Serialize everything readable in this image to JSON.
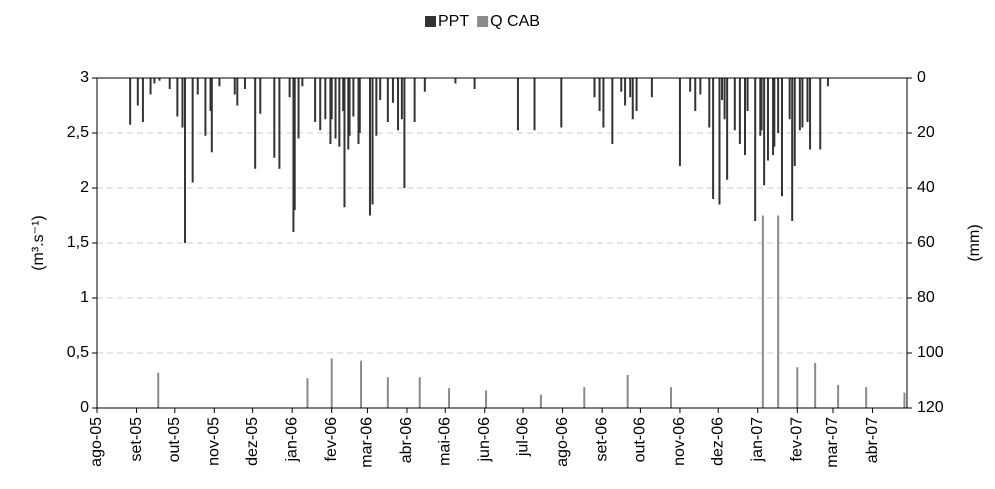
{
  "chart_data": {
    "type": "bar",
    "ylabel": "(m³.s⁻¹)",
    "y2label": "(mm)",
    "xlim": [
      0,
      635
    ],
    "xticks": [
      {
        "value": 0,
        "label": "ago-05"
      },
      {
        "value": 31,
        "label": "set-05"
      },
      {
        "value": 61,
        "label": "out-05"
      },
      {
        "value": 92,
        "label": "nov-05"
      },
      {
        "value": 122,
        "label": "dez-05"
      },
      {
        "value": 153,
        "label": "jan-06"
      },
      {
        "value": 184,
        "label": "fev-06"
      },
      {
        "value": 212,
        "label": "mar-06"
      },
      {
        "value": 243,
        "label": "abr-06"
      },
      {
        "value": 273,
        "label": "mai-06"
      },
      {
        "value": 304,
        "label": "jun-06"
      },
      {
        "value": 334,
        "label": "jul-06"
      },
      {
        "value": 365,
        "label": "ago-06"
      },
      {
        "value": 396,
        "label": "set-06"
      },
      {
        "value": 426,
        "label": "out-06"
      },
      {
        "value": 457,
        "label": "nov-06"
      },
      {
        "value": 487,
        "label": "dez-06"
      },
      {
        "value": 518,
        "label": "jan-07"
      },
      {
        "value": 549,
        "label": "fev-07"
      },
      {
        "value": 577,
        "label": "mar-07"
      },
      {
        "value": 608,
        "label": "abr-07"
      }
    ],
    "ylim": [
      0,
      3
    ],
    "yticks": [
      0,
      {
        "value": 0.5,
        "label": "0,5"
      },
      1,
      {
        "value": 1.5,
        "label": "1,5"
      },
      2,
      {
        "value": 2.5,
        "label": "2,5"
      },
      3
    ],
    "y2lim": [
      0,
      120
    ],
    "y2_inverted": true,
    "y2ticks": [
      0,
      20,
      40,
      60,
      80,
      100,
      120
    ],
    "grid": true,
    "legend": "top",
    "series": [
      {
        "name": "PPT",
        "color": "#333333",
        "axis": "y2",
        "x": [
          26,
          32,
          36,
          42,
          45,
          49,
          57,
          63,
          67,
          69,
          75,
          79,
          85,
          89,
          90,
          96,
          108,
          110,
          116,
          124,
          128,
          139,
          143,
          151,
          154,
          155,
          158,
          161,
          171,
          175,
          179,
          183,
          184,
          187,
          190,
          193,
          194,
          197,
          198,
          201,
          205,
          206,
          214,
          216,
          219,
          222,
          228,
          232,
          236,
          239,
          241,
          249,
          257,
          281,
          296,
          330,
          343,
          364,
          390,
          394,
          397,
          404,
          411,
          414,
          418,
          420,
          423,
          435,
          457,
          465,
          469,
          473,
          480,
          483,
          488,
          490,
          492,
          494,
          500,
          504,
          508,
          510,
          516,
          520,
          521,
          523,
          526,
          530,
          531,
          534,
          537,
          543,
          545,
          547,
          551,
          553,
          557,
          559,
          567,
          573
        ],
        "values": [
          17,
          10,
          16,
          6,
          2,
          1,
          4,
          14,
          18,
          60,
          38,
          6,
          21,
          12,
          27,
          3,
          6,
          10,
          4,
          33,
          13,
          29,
          33,
          7,
          56,
          48,
          22,
          3,
          16,
          19,
          15,
          24,
          15,
          22,
          25,
          12,
          47,
          26,
          21,
          14,
          24,
          20,
          50,
          46,
          21,
          8,
          16,
          9,
          19,
          15,
          40,
          16,
          5,
          2,
          4,
          19,
          19,
          18,
          7,
          12,
          18,
          24,
          5,
          10,
          7,
          15,
          12,
          7,
          32,
          5,
          12,
          6,
          18,
          44,
          46,
          8,
          15,
          37,
          19,
          24,
          28,
          12,
          52,
          21,
          19,
          39,
          30,
          28,
          25,
          20,
          43,
          15,
          52,
          32,
          19,
          18,
          16,
          26,
          26,
          3
        ]
      },
      {
        "name": "Q CAB",
        "color": "#8a8a8a",
        "x": [
          48,
          165,
          184,
          207,
          228,
          253,
          276,
          305,
          348,
          382,
          416,
          450,
          522,
          534,
          549,
          563,
          581,
          603,
          633
        ],
        "values": [
          0.32,
          0.27,
          0.45,
          0.43,
          0.28,
          0.28,
          0.18,
          0.16,
          0.12,
          0.19,
          0.3,
          0.19,
          1.75,
          1.75,
          0.37,
          0.41,
          0.21,
          0.19,
          0.14
        ]
      }
    ]
  }
}
